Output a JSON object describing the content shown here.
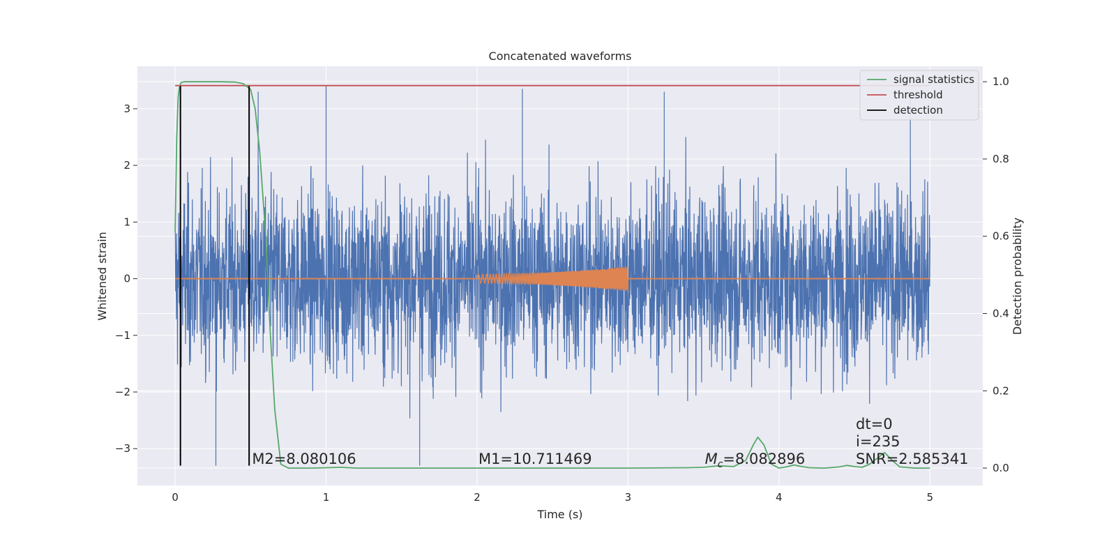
{
  "chart_data": {
    "type": "line",
    "title": "Concatenated waveforms",
    "xlabel": "Time (s)",
    "ylabel": "Whitened strain",
    "y2label": "Detection probability",
    "xlim": [
      -0.25,
      5.35
    ],
    "ylim": [
      -3.65,
      3.75
    ],
    "y2lim": [
      -0.045,
      1.04
    ],
    "xticks": [
      0,
      1,
      2,
      3,
      4,
      5
    ],
    "xtick_labels": [
      "0",
      "1",
      "2",
      "3",
      "4",
      "5"
    ],
    "yticks": [
      -3,
      -2,
      -1,
      0,
      1,
      2,
      3
    ],
    "ytick_labels": [
      "−3",
      "−2",
      "−1",
      "0",
      "1",
      "2",
      "3"
    ],
    "y2ticks": [
      0.0,
      0.2,
      0.4,
      0.6,
      0.8,
      1.0
    ],
    "y2tick_labels": [
      "0.0",
      "0.2",
      "0.4",
      "0.6",
      "0.8",
      "1.0"
    ],
    "grid": true,
    "legend_position": "top-right",
    "colors": {
      "background": "#eaeaf2",
      "grid": "#ffffff",
      "strain": "#4c72b0",
      "template": "#dd8452",
      "signal_statistics": "#55a868",
      "threshold": "#c44e52",
      "detection": "#000000"
    },
    "series": [
      {
        "name": "",
        "description_axis": "left",
        "kind": "noise",
        "x_range": [
          0,
          5
        ],
        "envelope_upper": 2.2,
        "envelope_lower": -2.2,
        "peak_max": 3.4,
        "peak_min": -3.3,
        "spike_points": [
          [
            1.0,
            3.4
          ],
          [
            2.3,
            3.35
          ],
          [
            3.24,
            3.3
          ],
          [
            4.87,
            3.3
          ],
          [
            0.55,
            3.3
          ],
          [
            1.62,
            -3.3
          ],
          [
            0.27,
            -3.3
          ]
        ]
      },
      {
        "name": "",
        "kind": "chirp",
        "x_range": [
          2.0,
          3.0
        ],
        "amp_start": 0.08,
        "amp_end": 0.22,
        "baseline_x": [
          0,
          5
        ],
        "baseline_y": 0
      },
      {
        "name": "signal statistics",
        "axis": "right",
        "x": [
          0.0,
          0.01,
          0.02,
          0.03,
          0.04,
          0.06,
          0.1,
          0.2,
          0.3,
          0.4,
          0.45,
          0.5,
          0.53,
          0.56,
          0.6,
          0.63,
          0.66,
          0.7,
          0.75,
          0.9,
          1.1,
          1.2,
          1.4,
          2.0,
          3.0,
          3.4,
          3.5,
          3.6,
          3.7,
          3.78,
          3.83,
          3.86,
          3.9,
          3.95,
          4.0,
          4.05,
          4.1,
          4.15,
          4.2,
          4.3,
          4.4,
          4.45,
          4.5,
          4.55,
          4.6,
          4.65,
          4.7,
          4.75,
          4.8,
          4.9,
          5.0
        ],
        "y": [
          0.61,
          0.85,
          0.96,
          0.99,
          0.998,
          1.0,
          1.0,
          1.0,
          1.0,
          0.999,
          0.995,
          0.98,
          0.93,
          0.82,
          0.6,
          0.35,
          0.15,
          0.01,
          0.0,
          0.0,
          0.002,
          0.0,
          0.0,
          0.0,
          0.0,
          0.001,
          0.002,
          0.006,
          0.004,
          0.02,
          0.06,
          0.08,
          0.06,
          0.01,
          0.0,
          0.003,
          0.008,
          0.004,
          0.001,
          0.0,
          0.003,
          0.007,
          0.004,
          0.002,
          0.01,
          0.025,
          0.04,
          0.02,
          0.003,
          0.0,
          0.0
        ]
      },
      {
        "name": "threshold",
        "axis": "right",
        "x": [
          0,
          5
        ],
        "y": [
          0.99,
          0.99
        ]
      },
      {
        "name": "detection",
        "axis": "left",
        "vertical_lines_x": [
          0.035,
          0.49
        ],
        "y_range": [
          -3.3,
          3.4
        ]
      }
    ],
    "annotations": [
      {
        "text": "M2=8.080106",
        "x": 0.5,
        "y": -3.27
      },
      {
        "text": "M1=10.711469",
        "x": 2.0,
        "y": -3.27
      },
      {
        "text_math_symbol": "M",
        "text_math_sub": "c",
        "text": "=8.082896",
        "x": 3.5,
        "y": -3.27
      },
      {
        "text": "dt=0",
        "x": 4.5,
        "y": -2.65
      },
      {
        "text": "i=235",
        "x": 4.5,
        "y": -2.96
      },
      {
        "text": "SNR=2.585341",
        "x": 4.5,
        "y": -3.27
      }
    ]
  }
}
